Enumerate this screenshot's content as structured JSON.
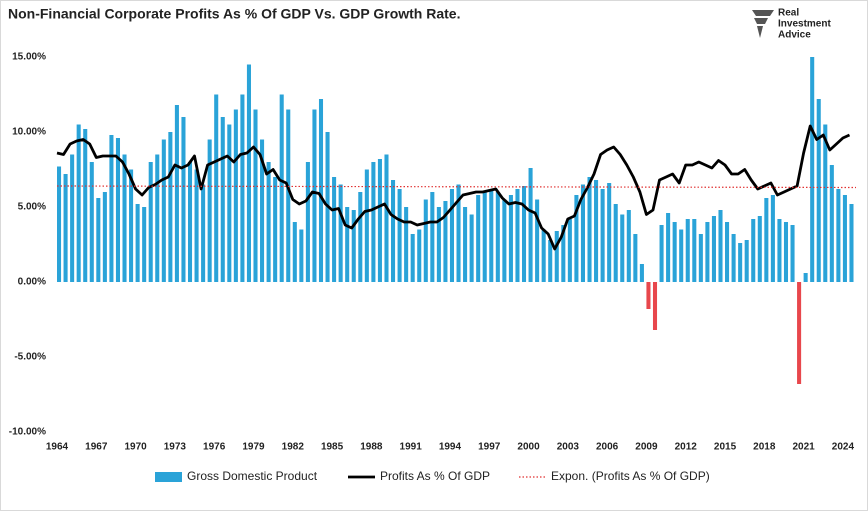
{
  "brand": [
    "Real",
    "Investment",
    "Advice"
  ],
  "chart_data": {
    "type": "bar",
    "title": "Non-Financial Corporate Profits As % Of GDP Vs. GDP Growth Rate.",
    "x": [
      1964,
      1964.5,
      1965,
      1965.5,
      1966,
      1966.5,
      1967,
      1967.5,
      1968,
      1968.5,
      1969,
      1969.5,
      1970,
      1970.5,
      1971,
      1971.5,
      1972,
      1972.5,
      1973,
      1973.5,
      1974,
      1974.5,
      1975,
      1975.5,
      1976,
      1976.5,
      1977,
      1977.5,
      1978,
      1978.5,
      1979,
      1979.5,
      1980,
      1980.5,
      1981,
      1981.5,
      1982,
      1982.5,
      1983,
      1983.5,
      1984,
      1984.5,
      1985,
      1985.5,
      1986,
      1986.5,
      1987,
      1987.5,
      1988,
      1988.5,
      1989,
      1989.5,
      1990,
      1990.5,
      1991,
      1991.5,
      1992,
      1992.5,
      1993,
      1993.5,
      1994,
      1994.5,
      1995,
      1995.5,
      1996,
      1996.5,
      1997,
      1997.5,
      1998,
      1998.5,
      1999,
      1999.5,
      2000,
      2000.5,
      2001,
      2001.5,
      2002,
      2002.5,
      2003,
      2003.5,
      2004,
      2004.5,
      2005,
      2005.5,
      2006,
      2006.5,
      2007,
      2007.5,
      2008,
      2008.5,
      2009,
      2009.5,
      2010,
      2010.5,
      2011,
      2011.5,
      2012,
      2012.5,
      2013,
      2013.5,
      2014,
      2014.5,
      2015,
      2015.5,
      2016,
      2016.5,
      2017,
      2017.5,
      2018,
      2018.5,
      2019,
      2019.5,
      2020,
      2020.5,
      2021,
      2021.5,
      2022,
      2022.5,
      2023,
      2023.5,
      2024,
      2024.5
    ],
    "xlim": [
      1964,
      2025
    ],
    "xticks": [
      1964,
      1967,
      1970,
      1973,
      1976,
      1979,
      1982,
      1985,
      1988,
      1991,
      1994,
      1997,
      2000,
      2003,
      2006,
      2009,
      2012,
      2015,
      2018,
      2021,
      2024
    ],
    "ylim": [
      -10,
      15
    ],
    "yticks": [
      {
        "value": -10,
        "label": "-10.00%"
      },
      {
        "value": -5,
        "label": "-5.00%"
      },
      {
        "value": 0,
        "label": "0.00%"
      },
      {
        "value": 5,
        "label": "5.00%"
      },
      {
        "value": 10,
        "label": "10.00%"
      },
      {
        "value": 15,
        "label": "15.00%"
      }
    ],
    "grid": false,
    "series": [
      {
        "name": "Gross Domestic Product",
        "type": "bar",
        "color": "#2aa3d8",
        "negative_color": "#e8474c",
        "values": [
          7.7,
          7.2,
          8.5,
          10.5,
          10.2,
          8.0,
          5.6,
          6.0,
          9.8,
          9.6,
          8.5,
          7.5,
          5.2,
          5.0,
          8.0,
          8.5,
          9.5,
          10.0,
          11.8,
          11.0,
          8.0,
          7.5,
          6.5,
          9.5,
          12.5,
          11.0,
          10.5,
          11.5,
          12.5,
          14.5,
          11.5,
          9.5,
          8.0,
          7.0,
          12.5,
          11.5,
          4.0,
          3.5,
          8.0,
          11.5,
          12.2,
          10.0,
          7.0,
          6.5,
          5.0,
          4.8,
          6.0,
          7.5,
          8.0,
          8.2,
          8.5,
          6.8,
          6.2,
          5.0,
          3.2,
          3.5,
          5.5,
          6.0,
          5.0,
          5.4,
          6.2,
          6.5,
          5.0,
          4.5,
          5.8,
          6.0,
          6.2,
          6.0,
          5.5,
          5.8,
          6.2,
          6.4,
          7.6,
          5.5,
          3.5,
          2.8,
          3.4,
          3.8,
          4.2,
          5.8,
          6.5,
          7.0,
          6.8,
          6.2,
          6.6,
          5.2,
          4.5,
          4.8,
          3.2,
          1.2,
          -1.8,
          -3.2,
          3.8,
          4.6,
          4.0,
          3.5,
          4.2,
          4.2,
          3.2,
          4.0,
          4.4,
          4.8,
          4.0,
          3.2,
          2.6,
          2.8,
          4.2,
          4.4,
          5.6,
          5.8,
          4.2,
          4.0,
          3.8,
          -6.8,
          0.6,
          15.0,
          12.2,
          10.5,
          7.8,
          6.2,
          5.8,
          5.2
        ]
      },
      {
        "name": "Profits As % Of GDP",
        "type": "line",
        "color": "#000000",
        "values": [
          8.6,
          8.5,
          9.2,
          9.4,
          9.5,
          9.2,
          8.3,
          8.4,
          8.4,
          8.4,
          8.0,
          7.2,
          6.2,
          5.8,
          6.3,
          6.5,
          6.8,
          7.0,
          7.8,
          7.6,
          7.8,
          8.4,
          6.2,
          7.8,
          8.0,
          8.2,
          8.4,
          8.0,
          8.5,
          8.6,
          9.0,
          8.5,
          7.2,
          7.5,
          6.8,
          6.6,
          5.5,
          5.2,
          5.4,
          6.0,
          5.9,
          5.2,
          4.8,
          4.9,
          3.8,
          3.6,
          4.2,
          4.7,
          4.8,
          5.0,
          5.2,
          4.5,
          4.2,
          4.0,
          4.0,
          3.8,
          3.9,
          4.0,
          4.0,
          4.3,
          4.8,
          5.3,
          5.8,
          5.9,
          6.0,
          6.0,
          6.1,
          6.2,
          5.6,
          5.2,
          5.3,
          5.2,
          4.8,
          4.6,
          3.6,
          3.2,
          2.2,
          3.0,
          4.2,
          4.4,
          5.5,
          6.3,
          7.2,
          8.5,
          8.8,
          9.0,
          8.5,
          7.8,
          7.0,
          6.0,
          4.5,
          4.8,
          6.8,
          7.0,
          7.2,
          6.6,
          7.8,
          7.8,
          8.0,
          7.8,
          7.6,
          8.1,
          7.8,
          7.2,
          7.2,
          7.5,
          6.8,
          6.2,
          6.4,
          6.6,
          5.8,
          6.0,
          6.2,
          6.4,
          8.6,
          10.4,
          9.5,
          9.8,
          8.8,
          9.2,
          9.6,
          9.8
        ]
      },
      {
        "name": "Expon. (Profits As % Of GDP)",
        "type": "line",
        "color": "#e03030",
        "dashed": true,
        "x": [
          1964,
          2025
        ],
        "values": [
          6.4,
          6.3
        ]
      }
    ]
  }
}
